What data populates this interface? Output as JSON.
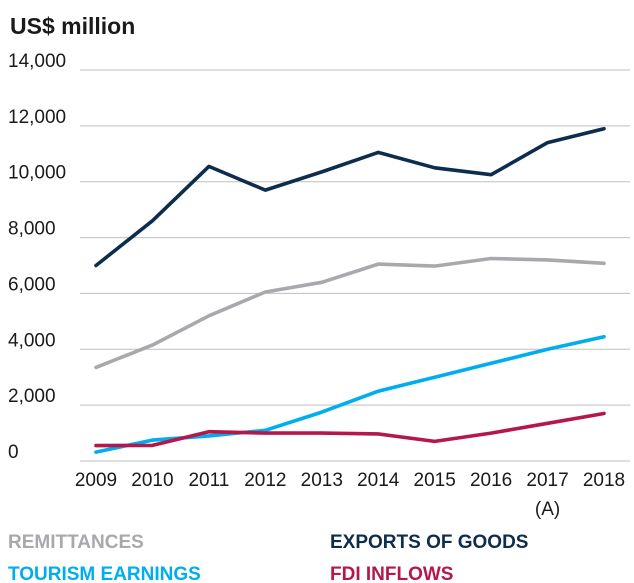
{
  "chart_data": {
    "type": "line",
    "ylabel": "US$ million",
    "ylim": [
      0,
      14000
    ],
    "yticks": [
      0,
      2000,
      4000,
      6000,
      8000,
      10000,
      12000,
      14000
    ],
    "ytick_labels": [
      "0",
      "2,000",
      "4,000",
      "6,000",
      "8,000",
      "10,000",
      "12,000",
      "14,000"
    ],
    "categories": [
      "2009",
      "2010",
      "2011",
      "2012",
      "2013",
      "2014",
      "2015",
      "2016",
      "2017",
      "2018"
    ],
    "category_sublabels": [
      "",
      "",
      "",
      "",
      "",
      "",
      "",
      "",
      "(A)",
      ""
    ],
    "grid": true,
    "legend_position": "bottom",
    "series": [
      {
        "name": "EXPORTS OF GOODS",
        "color": "#0d2d4f",
        "values": [
          7000,
          8600,
          10550,
          9700,
          10350,
          11050,
          10500,
          10250,
          11400,
          11900
        ]
      },
      {
        "name": "REMITTANCES",
        "color": "#a7a9ac",
        "values": [
          3350,
          4150,
          5200,
          6050,
          6400,
          7050,
          6980,
          7250,
          7200,
          7080
        ]
      },
      {
        "name": "TOURISM EARNINGS",
        "color": "#00aeef",
        "values": [
          320,
          750,
          900,
          1100,
          1750,
          2500,
          3000,
          3500,
          4000,
          4450
        ]
      },
      {
        "name": "FDI INFLOWS",
        "color": "#b5174b",
        "values": [
          550,
          560,
          1050,
          1000,
          1000,
          970,
          700,
          1000,
          1350,
          1700
        ]
      }
    ]
  }
}
